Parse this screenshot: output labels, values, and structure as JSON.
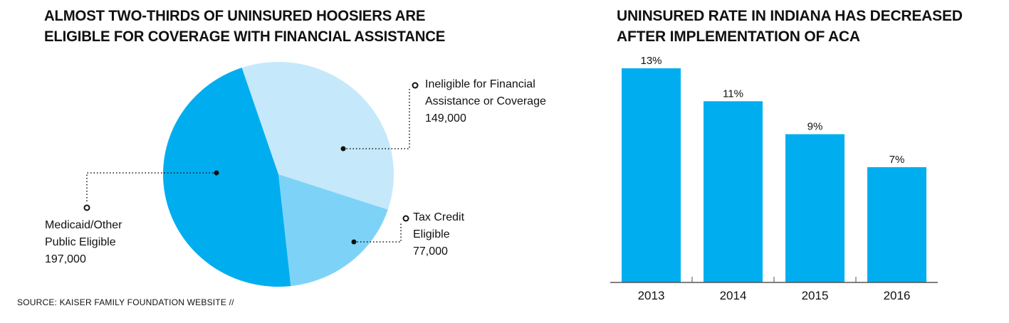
{
  "chart_data": [
    {
      "type": "pie",
      "title_lines": [
        "ALMOST TWO-THIRDS OF UNINSURED HOOSIERS ARE",
        "ELIGIBLE FOR COVERAGE WITH FINANCIAL ASSISTANCE"
      ],
      "slices": [
        {
          "label_lines": [
            "Ineligible for Financial",
            "Assistance or Coverage"
          ],
          "value": 149000,
          "value_label": "149,000",
          "color": "#c5e9fa"
        },
        {
          "label_lines": [
            "Tax Credit",
            "Eligible"
          ],
          "value": 77000,
          "value_label": "77,000",
          "color": "#7dd3f7"
        },
        {
          "label_lines": [
            "Medicaid/Other",
            "Public Eligible"
          ],
          "value": 197000,
          "value_label": "197,000",
          "color": "#00aeef"
        }
      ],
      "source": "SOURCE: KAISER FAMILY FOUNDATION WEBSITE //"
    },
    {
      "type": "bar",
      "title_lines": [
        "UNINSURED RATE IN INDIANA HAS DECREASED",
        "AFTER IMPLEMENTATION OF ACA"
      ],
      "categories": [
        "2013",
        "2014",
        "2015",
        "2016"
      ],
      "values": [
        13,
        11,
        9,
        7
      ],
      "data_labels": [
        "13%",
        "11%",
        "9%",
        "7%"
      ],
      "ylim": [
        0,
        13
      ],
      "color": "#00aeef",
      "grid": false
    }
  ]
}
